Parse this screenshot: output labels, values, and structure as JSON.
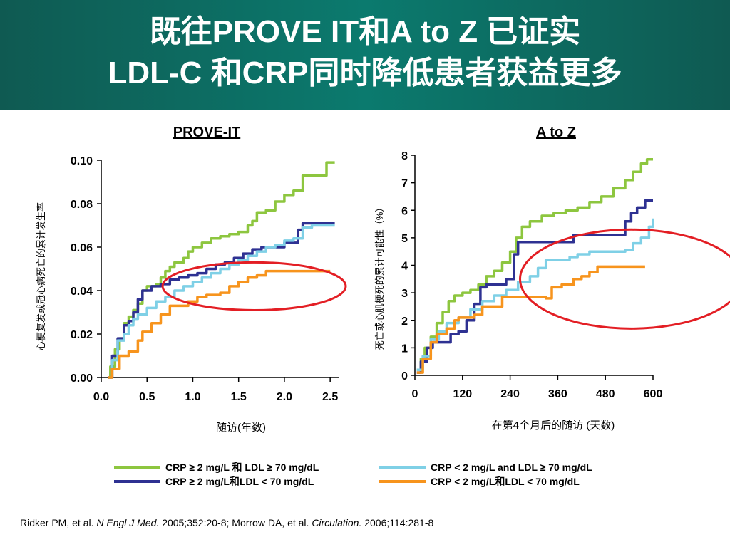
{
  "title": {
    "line1": "既往PROVE IT和A to Z 已证实",
    "line2": "LDL-C 和CRP同时降低患者获益更多"
  },
  "chart_data": [
    {
      "type": "line",
      "title": "PROVE-IT",
      "xlabel": "随访(年数)",
      "ylabel": "心梗复发或冠心病死亡的累计发生率",
      "xlim": [
        0,
        2.6
      ],
      "ylim": [
        0,
        0.1
      ],
      "xticks": [
        "0.0",
        "0.5",
        "1.0",
        "1.5",
        "2.0",
        "2.5"
      ],
      "yticks": [
        "0.00",
        "0.02",
        "0.04",
        "0.06",
        "0.08",
        "0.10"
      ],
      "series": [
        {
          "name": "CRP ≥ 2 mg/L 和 LDL ≥ 70 mg/dL",
          "color": "#8dc63f",
          "points": [
            [
              0.07,
              0
            ],
            [
              0.1,
              0.005
            ],
            [
              0.15,
              0.013
            ],
            [
              0.2,
              0.018
            ],
            [
              0.25,
              0.025
            ],
            [
              0.3,
              0.028
            ],
            [
              0.35,
              0.031
            ],
            [
              0.4,
              0.034
            ],
            [
              0.45,
              0.04
            ],
            [
              0.5,
              0.042
            ],
            [
              0.6,
              0.043
            ],
            [
              0.65,
              0.046
            ],
            [
              0.7,
              0.049
            ],
            [
              0.75,
              0.051
            ],
            [
              0.8,
              0.053
            ],
            [
              0.9,
              0.055
            ],
            [
              0.95,
              0.058
            ],
            [
              1.0,
              0.06
            ],
            [
              1.1,
              0.062
            ],
            [
              1.2,
              0.064
            ],
            [
              1.3,
              0.065
            ],
            [
              1.4,
              0.066
            ],
            [
              1.5,
              0.067
            ],
            [
              1.6,
              0.07
            ],
            [
              1.65,
              0.072
            ],
            [
              1.7,
              0.076
            ],
            [
              1.8,
              0.077
            ],
            [
              1.9,
              0.081
            ],
            [
              2.0,
              0.084
            ],
            [
              2.1,
              0.086
            ],
            [
              2.2,
              0.093
            ],
            [
              2.45,
              0.093
            ],
            [
              2.46,
              0.099
            ],
            [
              2.55,
              0.099
            ]
          ]
        },
        {
          "name": "CRP ≥ 2 mg/L和LDL < 70 mg/dL",
          "color": "#2e3192",
          "points": [
            [
              0.07,
              0
            ],
            [
              0.12,
              0.01
            ],
            [
              0.18,
              0.018
            ],
            [
              0.25,
              0.024
            ],
            [
              0.3,
              0.026
            ],
            [
              0.35,
              0.03
            ],
            [
              0.4,
              0.036
            ],
            [
              0.45,
              0.04
            ],
            [
              0.55,
              0.042
            ],
            [
              0.65,
              0.043
            ],
            [
              0.75,
              0.045
            ],
            [
              0.85,
              0.046
            ],
            [
              0.95,
              0.047
            ],
            [
              1.05,
              0.048
            ],
            [
              1.15,
              0.05
            ],
            [
              1.25,
              0.052
            ],
            [
              1.35,
              0.053
            ],
            [
              1.45,
              0.055
            ],
            [
              1.55,
              0.057
            ],
            [
              1.65,
              0.059
            ],
            [
              1.75,
              0.06
            ],
            [
              1.95,
              0.06
            ],
            [
              2.0,
              0.062
            ],
            [
              2.1,
              0.062
            ],
            [
              2.15,
              0.068
            ],
            [
              2.2,
              0.071
            ],
            [
              2.55,
              0.071
            ]
          ]
        },
        {
          "name": "CRP < 2 mg/L and LDL ≥ 70 mg/dL",
          "color": "#7fd0e6",
          "points": [
            [
              0.07,
              0
            ],
            [
              0.12,
              0.008
            ],
            [
              0.18,
              0.017
            ],
            [
              0.25,
              0.02
            ],
            [
              0.3,
              0.024
            ],
            [
              0.35,
              0.027
            ],
            [
              0.4,
              0.029
            ],
            [
              0.5,
              0.032
            ],
            [
              0.6,
              0.035
            ],
            [
              0.7,
              0.037
            ],
            [
              0.8,
              0.04
            ],
            [
              0.9,
              0.042
            ],
            [
              1.0,
              0.044
            ],
            [
              1.1,
              0.046
            ],
            [
              1.2,
              0.048
            ],
            [
              1.3,
              0.05
            ],
            [
              1.4,
              0.052
            ],
            [
              1.5,
              0.054
            ],
            [
              1.6,
              0.056
            ],
            [
              1.7,
              0.058
            ],
            [
              1.8,
              0.06
            ],
            [
              1.9,
              0.061
            ],
            [
              2.0,
              0.063
            ],
            [
              2.1,
              0.064
            ],
            [
              2.2,
              0.069
            ],
            [
              2.3,
              0.07
            ],
            [
              2.55,
              0.07
            ]
          ]
        },
        {
          "name": "CRP < 2 mg/L和LDL < 70 mg/dL",
          "color": "#f7941d",
          "points": [
            [
              0.07,
              0
            ],
            [
              0.12,
              0.004
            ],
            [
              0.2,
              0.01
            ],
            [
              0.3,
              0.012
            ],
            [
              0.4,
              0.017
            ],
            [
              0.45,
              0.021
            ],
            [
              0.55,
              0.025
            ],
            [
              0.65,
              0.029
            ],
            [
              0.75,
              0.033
            ],
            [
              0.9,
              0.033
            ],
            [
              0.95,
              0.035
            ],
            [
              1.05,
              0.037
            ],
            [
              1.15,
              0.038
            ],
            [
              1.3,
              0.039
            ],
            [
              1.4,
              0.042
            ],
            [
              1.5,
              0.044
            ],
            [
              1.6,
              0.046
            ],
            [
              1.7,
              0.047
            ],
            [
              1.8,
              0.049
            ],
            [
              2.0,
              0.049
            ],
            [
              2.5,
              0.049
            ]
          ]
        }
      ],
      "annotation": {
        "type": "ellipse",
        "color": "#e31e24",
        "cx": 1.67,
        "cy": 0.042,
        "rx": 1.0,
        "ry": 0.011
      }
    },
    {
      "type": "line",
      "title": "A to Z",
      "xlabel": "在第4个月后的随访 (天数)",
      "ylabel": "死亡或心肌梗死的累计可能性（%）",
      "xlim": [
        0,
        600
      ],
      "ylim": [
        0,
        8
      ],
      "xticks": [
        "0",
        "120",
        "240",
        "360",
        "480",
        "600"
      ],
      "yticks": [
        "0",
        "1",
        "2",
        "3",
        "4",
        "5",
        "6",
        "7",
        "8"
      ],
      "series": [
        {
          "name": "CRP ≥ 2 mg/L 和 LDL ≥ 70 mg/dL",
          "color": "#8dc63f",
          "points": [
            [
              5,
              0.2
            ],
            [
              15,
              0.6
            ],
            [
              25,
              1.0
            ],
            [
              40,
              1.4
            ],
            [
              55,
              1.9
            ],
            [
              70,
              2.3
            ],
            [
              85,
              2.7
            ],
            [
              100,
              2.9
            ],
            [
              120,
              3.0
            ],
            [
              140,
              3.1
            ],
            [
              160,
              3.3
            ],
            [
              180,
              3.6
            ],
            [
              200,
              3.8
            ],
            [
              220,
              4.1
            ],
            [
              240,
              4.5
            ],
            [
              255,
              5.0
            ],
            [
              270,
              5.4
            ],
            [
              290,
              5.6
            ],
            [
              320,
              5.8
            ],
            [
              350,
              5.9
            ],
            [
              380,
              6.0
            ],
            [
              410,
              6.1
            ],
            [
              440,
              6.3
            ],
            [
              470,
              6.5
            ],
            [
              500,
              6.8
            ],
            [
              530,
              7.1
            ],
            [
              550,
              7.4
            ],
            [
              570,
              7.7
            ],
            [
              585,
              7.85
            ],
            [
              600,
              7.85
            ]
          ]
        },
        {
          "name": "CRP ≥ 2 mg/L和LDL < 70 mg/dL",
          "color": "#2e3192",
          "points": [
            [
              5,
              0.1
            ],
            [
              15,
              0.5
            ],
            [
              30,
              1.0
            ],
            [
              45,
              1.2
            ],
            [
              75,
              1.2
            ],
            [
              90,
              1.5
            ],
            [
              110,
              1.6
            ],
            [
              130,
              2.0
            ],
            [
              150,
              2.6
            ],
            [
              165,
              3.2
            ],
            [
              180,
              3.3
            ],
            [
              215,
              3.3
            ],
            [
              230,
              3.5
            ],
            [
              250,
              4.4
            ],
            [
              260,
              4.85
            ],
            [
              380,
              4.85
            ],
            [
              400,
              5.1
            ],
            [
              520,
              5.1
            ],
            [
              530,
              5.6
            ],
            [
              545,
              5.9
            ],
            [
              560,
              6.1
            ],
            [
              580,
              6.35
            ],
            [
              600,
              6.35
            ]
          ]
        },
        {
          "name": "CRP < 2 mg/L and LDL ≥ 70 mg/dL",
          "color": "#7fd0e6",
          "points": [
            [
              5,
              0.2
            ],
            [
              20,
              0.7
            ],
            [
              40,
              1.3
            ],
            [
              60,
              1.6
            ],
            [
              80,
              1.9
            ],
            [
              110,
              2.1
            ],
            [
              140,
              2.4
            ],
            [
              170,
              2.7
            ],
            [
              200,
              2.9
            ],
            [
              230,
              3.1
            ],
            [
              260,
              3.4
            ],
            [
              290,
              3.6
            ],
            [
              310,
              3.9
            ],
            [
              330,
              4.2
            ],
            [
              360,
              4.2
            ],
            [
              390,
              4.3
            ],
            [
              410,
              4.4
            ],
            [
              440,
              4.5
            ],
            [
              530,
              4.55
            ],
            [
              550,
              4.8
            ],
            [
              570,
              5.0
            ],
            [
              590,
              5.4
            ],
            [
              600,
              5.7
            ]
          ]
        },
        {
          "name": "CRP < 2 mg/L和LDL < 70 mg/dL",
          "color": "#f7941d",
          "points": [
            [
              5,
              0.1
            ],
            [
              20,
              0.6
            ],
            [
              40,
              1.2
            ],
            [
              55,
              1.5
            ],
            [
              80,
              1.7
            ],
            [
              100,
              2.0
            ],
            [
              110,
              2.1
            ],
            [
              150,
              2.2
            ],
            [
              170,
              2.5
            ],
            [
              220,
              2.85
            ],
            [
              330,
              2.8
            ],
            [
              345,
              3.2
            ],
            [
              370,
              3.3
            ],
            [
              400,
              3.5
            ],
            [
              420,
              3.6
            ],
            [
              440,
              3.75
            ],
            [
              460,
              3.95
            ],
            [
              490,
              3.95
            ],
            [
              580,
              3.95
            ]
          ]
        }
      ],
      "annotation": {
        "type": "ellipse",
        "color": "#e31e24",
        "cx": 545,
        "cy": 3.5,
        "rx": 280,
        "ry": 1.8
      }
    }
  ],
  "legend": [
    {
      "label": "CRP ≥ 2 mg/L 和 LDL ≥ 70 mg/dL",
      "color": "#8dc63f"
    },
    {
      "label": "CRP ≥ 2 mg/L和LDL < 70 mg/dL",
      "color": "#2e3192"
    },
    {
      "label": "CRP < 2 mg/L and LDL ≥ 70 mg/dL",
      "color": "#7fd0e6"
    },
    {
      "label": "CRP < 2 mg/L和LDL < 70 mg/dL",
      "color": "#f7941d"
    }
  ],
  "reference": {
    "part1": "Ridker PM, et al. ",
    "journal1": "N Engl J Med.",
    "part2": " 2005;352:20-8; Morrow DA, et al. ",
    "journal2": "Circulation.",
    "part3": " 2006;114:281-8"
  }
}
